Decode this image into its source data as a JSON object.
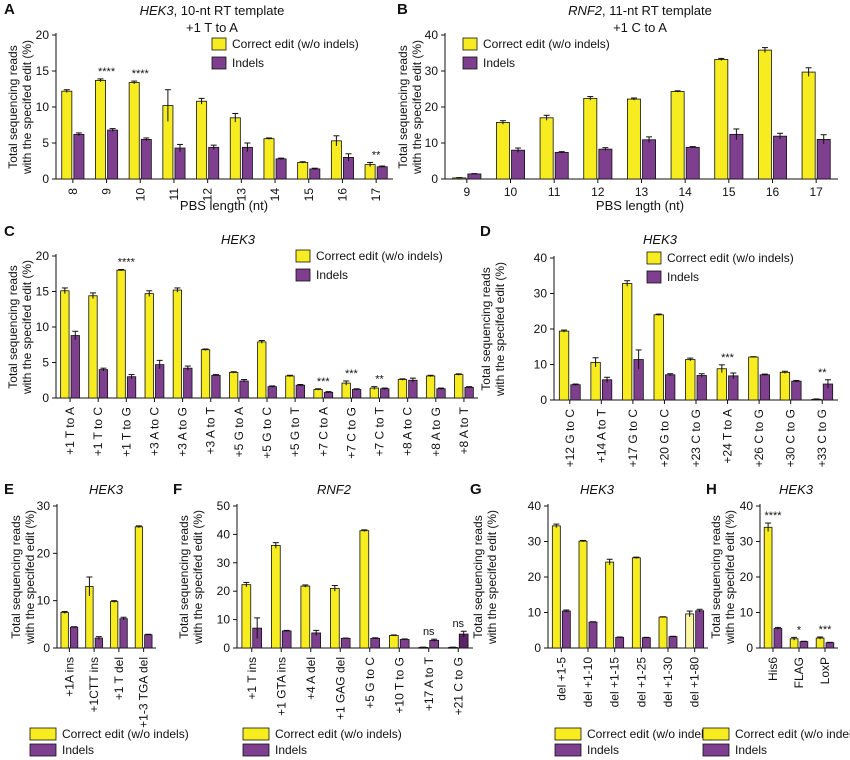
{
  "colors": {
    "correct": "#f6ec1f",
    "indels": "#7f3f8f",
    "correct_light": "#fbf7a6",
    "indels_dark": "#5c2369",
    "axis": "#111111"
  },
  "legend": {
    "correct": "Correct edit (w/o indels)",
    "indels": "Indels"
  },
  "chart_data": [
    {
      "panel": "A",
      "type": "bar",
      "title": "HEK3",
      "title_suffix": ", 10-nt RT template",
      "subtitle": "+1 T to A",
      "xlabel": "PBS length (nt)",
      "ylabel": [
        "Total sequencing reads",
        "with the specifed edit (%)"
      ],
      "ylim": [
        0,
        20
      ],
      "yticks": [
        0,
        5,
        10,
        15,
        20
      ],
      "grid": false,
      "categories": [
        "8",
        "9",
        "10",
        "11",
        "12",
        "13",
        "14",
        "15",
        "16",
        "17"
      ],
      "series": [
        {
          "name": "Correct edit (w/o indels)",
          "values": [
            12.2,
            13.7,
            13.4,
            10.2,
            10.8,
            8.5,
            5.6,
            2.3,
            5.3,
            2.0
          ],
          "errors": [
            0.2,
            0.2,
            0.2,
            2.2,
            0.4,
            0.6,
            0.1,
            0.1,
            0.7,
            0.3
          ]
        },
        {
          "name": "Indels",
          "values": [
            6.2,
            6.8,
            5.5,
            4.3,
            4.4,
            4.4,
            2.8,
            1.4,
            3.0,
            1.7
          ],
          "errors": [
            0.2,
            0.2,
            0.2,
            0.5,
            0.3,
            0.6,
            0.1,
            0.1,
            0.5,
            0.1
          ]
        }
      ],
      "significance": [
        {
          "category": "9",
          "label": "****"
        },
        {
          "category": "10",
          "label": "****"
        },
        {
          "category": "17",
          "label": "**"
        }
      ]
    },
    {
      "panel": "B",
      "type": "bar",
      "title": "RNF2",
      "title_suffix": ", 11-nt RT template",
      "subtitle": "+1 C to A",
      "xlabel": "PBS length (nt)",
      "ylabel": [
        "Total sequencing reads",
        "with the specifed edit (%)"
      ],
      "ylim": [
        0,
        40
      ],
      "yticks": [
        0,
        10,
        20,
        30,
        40
      ],
      "grid": false,
      "categories": [
        "9",
        "10",
        "11",
        "12",
        "13",
        "14",
        "15",
        "16",
        "17"
      ],
      "series": [
        {
          "name": "Correct edit (w/o indels)",
          "values": [
            0.3,
            15.7,
            17.0,
            22.4,
            22.2,
            24.3,
            33.2,
            35.8,
            29.7
          ],
          "errors": [
            0.1,
            0.5,
            0.7,
            0.5,
            0.3,
            0.2,
            0.3,
            0.7,
            1.2
          ]
        },
        {
          "name": "Indels",
          "values": [
            1.4,
            8.0,
            7.4,
            8.3,
            10.9,
            8.8,
            12.4,
            11.9,
            11.0
          ],
          "errors": [
            0.1,
            0.6,
            0.2,
            0.4,
            0.8,
            0.2,
            1.5,
            0.8,
            1.3
          ]
        }
      ]
    },
    {
      "panel": "C",
      "type": "bar",
      "title": "HEK3",
      "subtitle": "",
      "xlabel": "",
      "ylabel": [
        "Total sequencing reads",
        "with the specifed edit (%)"
      ],
      "ylim": [
        0,
        20
      ],
      "yticks": [
        0,
        5,
        10,
        15,
        20
      ],
      "grid": false,
      "categories": [
        "+1 T to A",
        "+1 T to C",
        "+1 T to G",
        "+3 A to C",
        "+3 A to G",
        "+3 A to T",
        "+5 G to A",
        "+5 G to C",
        "+5 G to T",
        "+7 C to A",
        "+7 C to G",
        "+7 C to T",
        "+8 A to C",
        "+8 A to G",
        "+8 A to T"
      ],
      "series": [
        {
          "name": "Correct edit (w/o indels)",
          "values": [
            15.1,
            14.4,
            18.0,
            14.7,
            15.2,
            6.8,
            3.6,
            7.9,
            3.1,
            1.2,
            2.1,
            1.4,
            2.6,
            3.1,
            3.3
          ],
          "errors": [
            0.4,
            0.4,
            0.1,
            0.4,
            0.3,
            0.1,
            0.1,
            0.2,
            0.1,
            0.1,
            0.3,
            0.2,
            0.1,
            0.1,
            0.1
          ]
        },
        {
          "name": "Indels",
          "values": [
            8.8,
            4.0,
            3.0,
            4.7,
            4.2,
            3.2,
            2.4,
            1.6,
            1.8,
            0.8,
            1.2,
            1.3,
            2.5,
            1.3,
            1.5
          ],
          "errors": [
            0.6,
            0.2,
            0.3,
            0.6,
            0.3,
            0.1,
            0.2,
            0.1,
            0.1,
            0.1,
            0.1,
            0.1,
            0.3,
            0.1,
            0.1
          ]
        }
      ],
      "significance": [
        {
          "category": "+1 T to G",
          "label": "****"
        },
        {
          "category": "+7 C to A",
          "label": "***"
        },
        {
          "category": "+7 C to G",
          "label": "***"
        },
        {
          "category": "+7 C to T",
          "label": "**"
        }
      ]
    },
    {
      "panel": "D",
      "type": "bar",
      "title": "HEK3",
      "subtitle": "",
      "xlabel": "",
      "ylabel": [
        "Total sequencing reads",
        "with the specifed edit (%)"
      ],
      "ylim": [
        0,
        40
      ],
      "yticks": [
        0,
        10,
        20,
        30,
        40
      ],
      "grid": false,
      "categories": [
        "+12 G to C",
        "+14 A to T",
        "+17 G to C",
        "+20 G to C",
        "+23 C to G",
        "+24 T to A",
        "+26 C to G",
        "+30 C to G",
        "+33 C to G"
      ],
      "series": [
        {
          "name": "Correct edit (w/o indels)",
          "values": [
            19.4,
            10.6,
            32.8,
            24.0,
            11.4,
            8.8,
            12.1,
            7.8,
            0.2
          ],
          "errors": [
            0.3,
            1.3,
            0.8,
            0.2,
            0.4,
            1.1,
            0.1,
            0.3,
            0.1
          ]
        },
        {
          "name": "Indels",
          "values": [
            4.3,
            5.7,
            11.4,
            7.1,
            6.9,
            6.8,
            7.1,
            5.3,
            4.5
          ],
          "errors": [
            0.2,
            0.7,
            2.7,
            0.3,
            0.5,
            0.8,
            0.2,
            0.2,
            1.2
          ]
        }
      ],
      "significance": [
        {
          "category": "+24 T to A",
          "label": "***"
        },
        {
          "category": "+33 C to G",
          "label": "**"
        }
      ]
    },
    {
      "panel": "E",
      "type": "bar",
      "title": "HEK3",
      "subtitle": "",
      "xlabel": "",
      "ylabel": [
        "Total sequencing reads",
        "with the specifed edit (%)"
      ],
      "ylim": [
        0,
        30
      ],
      "yticks": [
        0,
        10,
        20,
        30
      ],
      "grid": false,
      "categories": [
        "+1A ins",
        "+1CTT ins",
        "+1 T del",
        "+1-3 TGA del"
      ],
      "series": [
        {
          "name": "Correct edit (w/o indels)",
          "values": [
            7.5,
            13.0,
            9.8,
            25.6
          ],
          "errors": [
            0.2,
            2.0,
            0.2,
            0.2
          ]
        },
        {
          "name": "Indels",
          "values": [
            4.4,
            2.1,
            6.2,
            2.8
          ],
          "errors": [
            0.1,
            0.3,
            0.3,
            0.1
          ]
        }
      ]
    },
    {
      "panel": "F",
      "type": "bar",
      "title": "RNF2",
      "subtitle": "",
      "xlabel": "",
      "ylabel": [
        "Total sequencing reads",
        "with the specifed edit (%)"
      ],
      "ylim": [
        0,
        50
      ],
      "yticks": [
        0,
        10,
        20,
        30,
        40,
        50
      ],
      "grid": false,
      "categories": [
        "+1 T ins",
        "+1 GTA ins",
        "+4 A del",
        "+1 GAG del",
        "+5 G to C",
        "+10 T to G",
        "+17 A to T",
        "+21 C to G"
      ],
      "series": [
        {
          "name": "Correct edit (w/o indels)",
          "values": [
            22.3,
            36.1,
            21.8,
            21.0,
            41.3,
            4.4,
            0.2,
            0.2
          ],
          "errors": [
            0.8,
            1.0,
            0.4,
            1.0,
            0.3,
            0.2,
            0.1,
            0.1
          ]
        },
        {
          "name": "Indels",
          "values": [
            7.0,
            6.0,
            5.3,
            3.4,
            3.4,
            3.0,
            2.7,
            4.9
          ],
          "errors": [
            3.6,
            0.2,
            0.9,
            0.1,
            0.2,
            0.2,
            0.4,
            1.0
          ]
        }
      ],
      "significance": [
        {
          "category": "+17 A to T",
          "label": "ns"
        },
        {
          "category": "+21 C to G",
          "label": "ns"
        }
      ]
    },
    {
      "panel": "G",
      "type": "bar",
      "title": "HEK3",
      "subtitle": "",
      "xlabel": "",
      "ylabel": [
        "Total sequencing reads",
        "with the specifed edit (%)"
      ],
      "ylim": [
        0,
        40
      ],
      "yticks": [
        0,
        10,
        20,
        30,
        40
      ],
      "grid": false,
      "categories": [
        "del +1-5",
        "del +1-10",
        "del +1-15",
        "del +1-25",
        "del +1-30",
        "del +1-80"
      ],
      "series": [
        {
          "name": "Correct edit (w/o indels)",
          "values": [
            34.4,
            30.1,
            24.2,
            25.4,
            8.7,
            9.6
          ],
          "errors": [
            0.5,
            0.2,
            0.8,
            0.2,
            0.1,
            0.8
          ]
        },
        {
          "name": "Indels",
          "values": [
            10.4,
            7.3,
            3.0,
            2.9,
            3.2,
            10.5
          ],
          "errors": [
            0.3,
            0.1,
            0.1,
            0.1,
            0.1,
            0.4
          ]
        }
      ]
    },
    {
      "panel": "H",
      "type": "bar",
      "title": "HEK3",
      "subtitle": "",
      "xlabel": "",
      "ylabel": [
        "Total sequencing reads",
        "with the specifed edit (%)"
      ],
      "ylim": [
        0,
        40
      ],
      "yticks": [
        0,
        10,
        20,
        30,
        40
      ],
      "grid": false,
      "categories": [
        "His6",
        "FLAG",
        "LoxP"
      ],
      "series": [
        {
          "name": "Correct edit (w/o indels)",
          "values": [
            34.0,
            2.6,
            2.8
          ],
          "errors": [
            1.2,
            0.4,
            0.3
          ]
        },
        {
          "name": "Indels",
          "values": [
            5.5,
            1.8,
            1.5
          ],
          "errors": [
            0.3,
            0.1,
            0.1
          ]
        }
      ],
      "significance": [
        {
          "category": "His6",
          "label": "****"
        },
        {
          "category": "FLAG",
          "label": "*"
        },
        {
          "category": "LoxP",
          "label": "***"
        }
      ]
    }
  ]
}
